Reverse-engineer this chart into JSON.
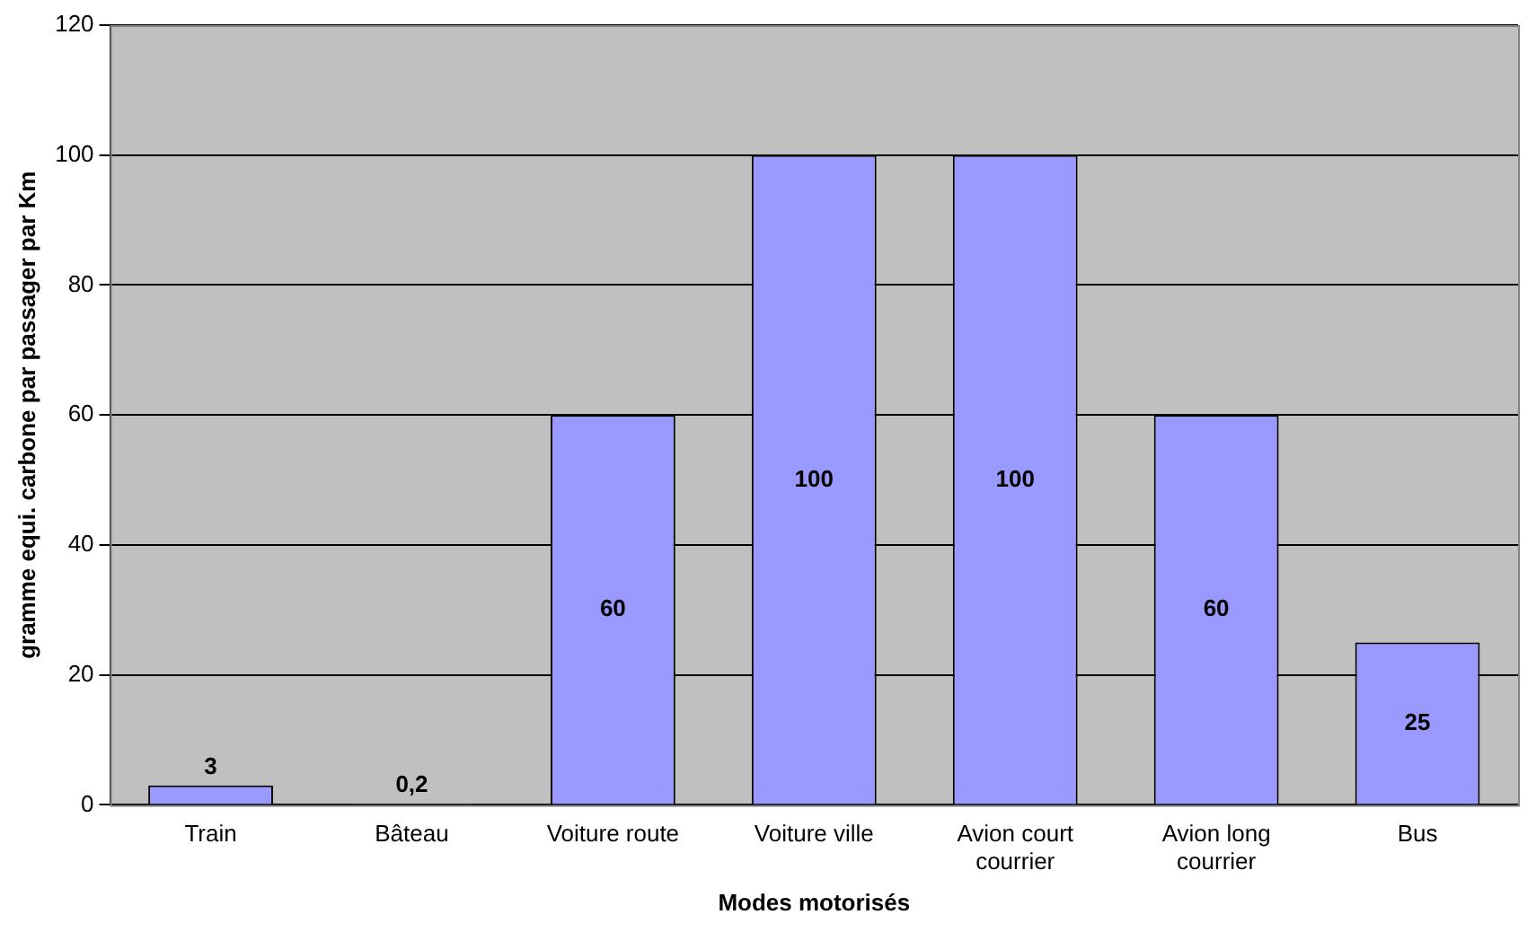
{
  "chart_data": {
    "type": "bar",
    "xlabel": "Modes motorisés",
    "ylabel": "gramme equi. carbone par passager par Km",
    "categories": [
      "Train",
      "Bâteau",
      "Voiture route",
      "Voiture ville",
      "Avion court courrier",
      "Avion long courrier",
      "Bus"
    ],
    "values": [
      3,
      0.2,
      60,
      100,
      100,
      60,
      25
    ],
    "value_labels": [
      "3",
      "0,2",
      "60",
      "100",
      "100",
      "60",
      "25"
    ],
    "color": "#9999ff",
    "ylim": [
      0,
      120
    ],
    "yticks": [
      0,
      20,
      40,
      60,
      80,
      100,
      120
    ],
    "grid": "y",
    "legend": false
  }
}
